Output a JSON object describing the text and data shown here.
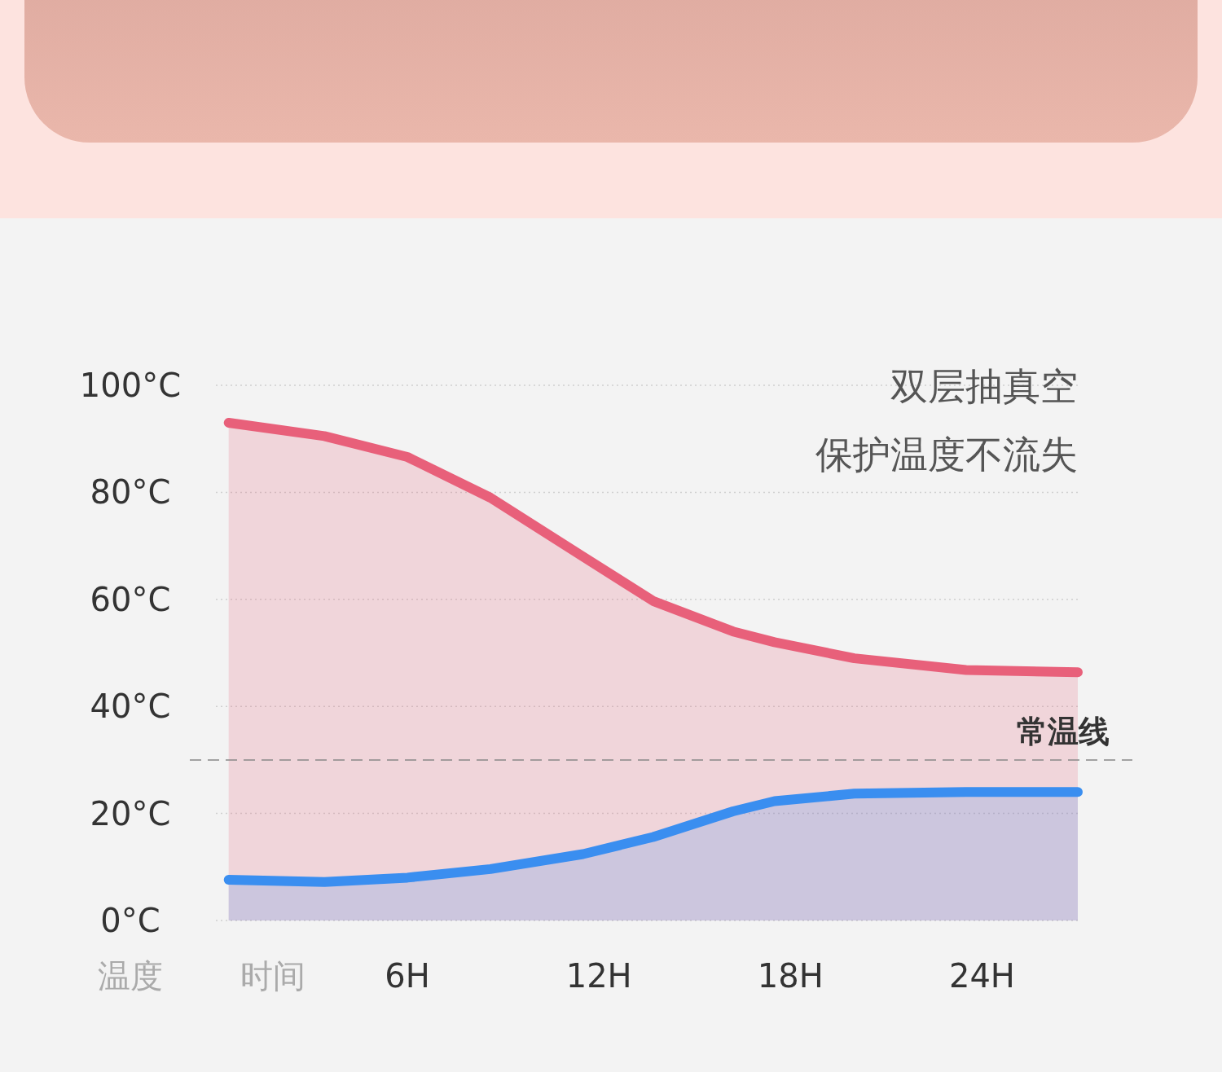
{
  "chart_data": {
    "type": "area",
    "title": "双层抽真空",
    "subtitle": "保护温度不流失",
    "xlabel": "时间",
    "ylabel": "温度",
    "x": [
      0.4,
      3.4,
      6,
      8.6,
      11.5,
      13.7,
      16.2,
      17.5,
      20,
      23.5,
      27
    ],
    "series": [
      {
        "color": "#e8607a",
        "values": [
          93,
          90.5,
          86.6,
          79,
          68,
          59.7,
          54,
          52,
          49,
          46.8,
          46.4
        ]
      },
      {
        "color": "#3a8ef0",
        "values": [
          7.6,
          7.2,
          8,
          9.6,
          12.4,
          15.6,
          20.4,
          22.3,
          23.7,
          24,
          24
        ]
      }
    ],
    "xlim": [
      0,
      27
    ],
    "ylim": [
      0,
      100
    ],
    "xticks": [
      {
        "value": 6,
        "label": "6H"
      },
      {
        "value": 12,
        "label": "12H"
      },
      {
        "value": 18,
        "label": "18H"
      },
      {
        "value": 24,
        "label": "24H"
      }
    ],
    "yticks": [
      {
        "value": 0,
        "label": "0°C"
      },
      {
        "value": 20,
        "label": "20°C"
      },
      {
        "value": 40,
        "label": "40°C"
      },
      {
        "value": 60,
        "label": "60°C"
      },
      {
        "value": 80,
        "label": "80°C"
      },
      {
        "value": 100,
        "label": "100°C"
      }
    ],
    "ref_lines": [
      {
        "axis": "y",
        "value": 30,
        "label": "常温线",
        "color": "#888888",
        "line_style": "dashed"
      }
    ],
    "grid": "y",
    "line_style": "solid",
    "marker": "none"
  }
}
